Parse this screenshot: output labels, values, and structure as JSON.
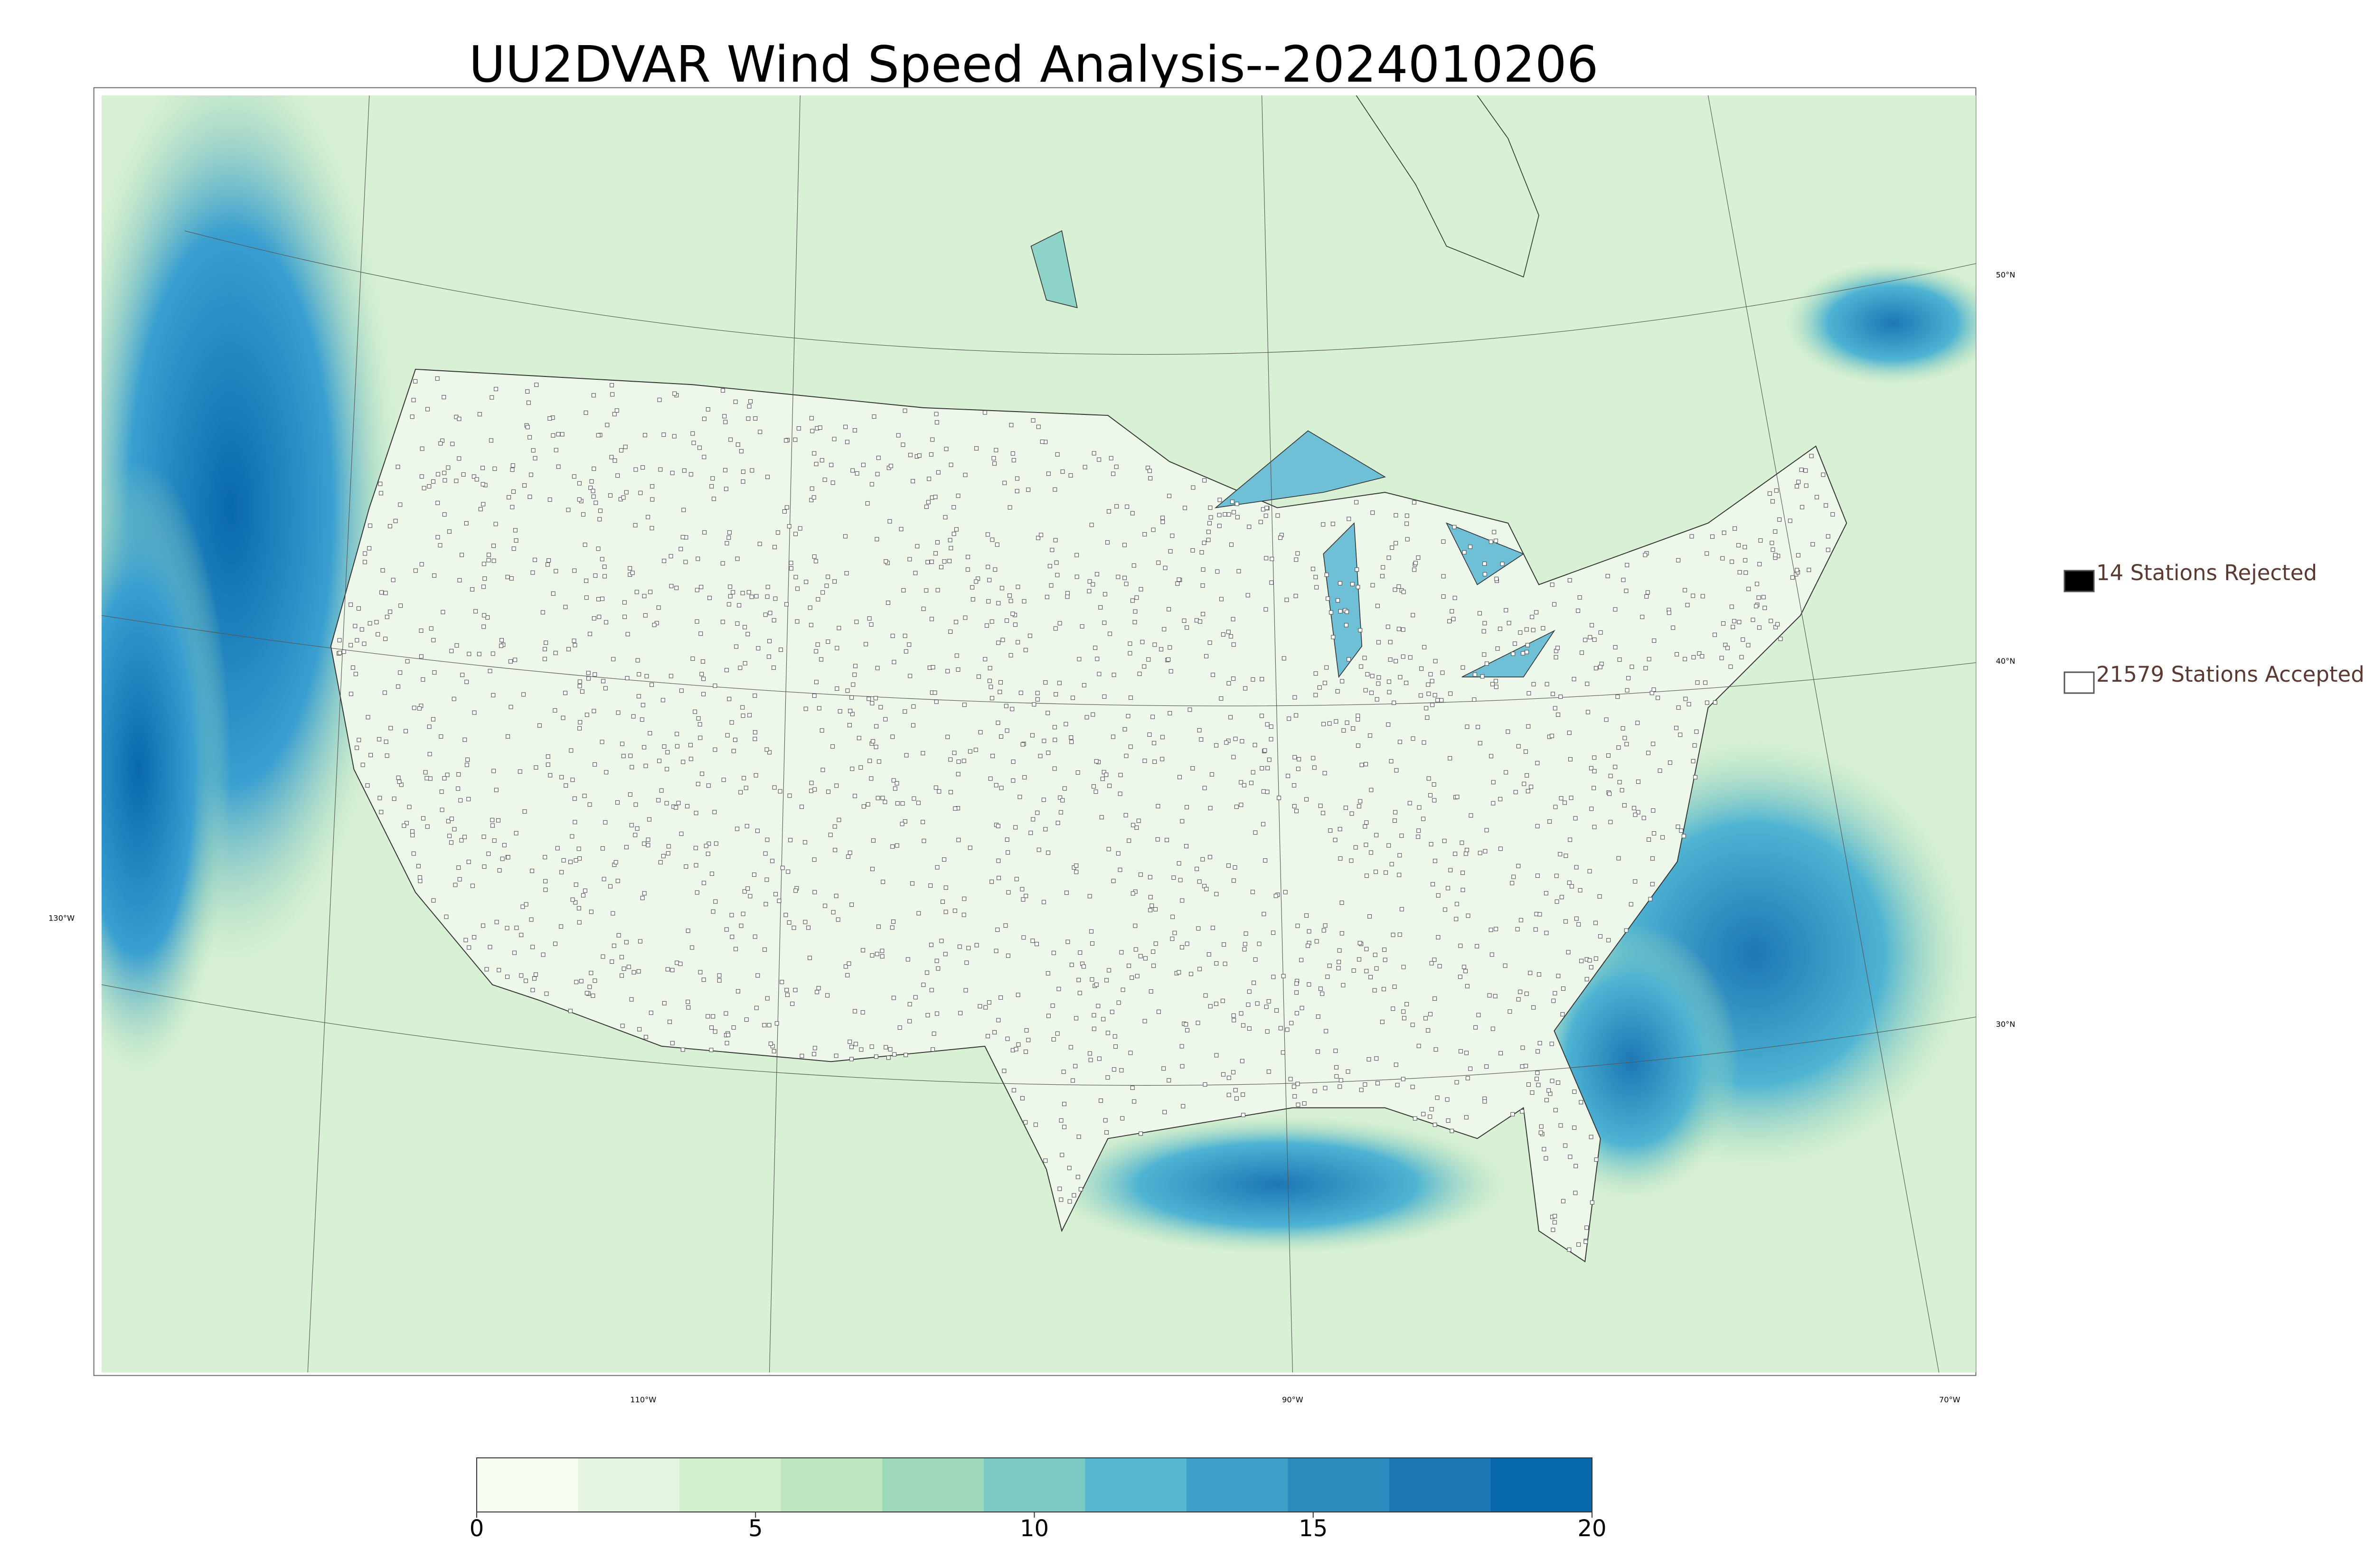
{
  "title": "UU2DVAR Wind Speed Analysis--2024010206",
  "map": {
    "lat_labels": [
      "50°N",
      "40°N",
      "30°N"
    ],
    "lon_labels": [
      "130°W",
      "110°W",
      "90°W",
      "70°W"
    ]
  },
  "legend": {
    "items": [
      {
        "label": "14 Stations Rejected",
        "fill": "#000000"
      },
      {
        "label": "21579 Stations Accepted",
        "fill": "#ffffff"
      }
    ]
  },
  "colorbar": {
    "range": [
      0,
      20
    ],
    "ticks": [
      0,
      5,
      10,
      15,
      20
    ],
    "colors": [
      "#f7fcf0",
      "#e6f5e1",
      "#d3eecd",
      "#bde5bf",
      "#9fd9bb",
      "#7bcbc4",
      "#58b7d1",
      "#3ca0c9",
      "#2b8cbe",
      "#1d77b4",
      "#0868ac"
    ]
  }
}
